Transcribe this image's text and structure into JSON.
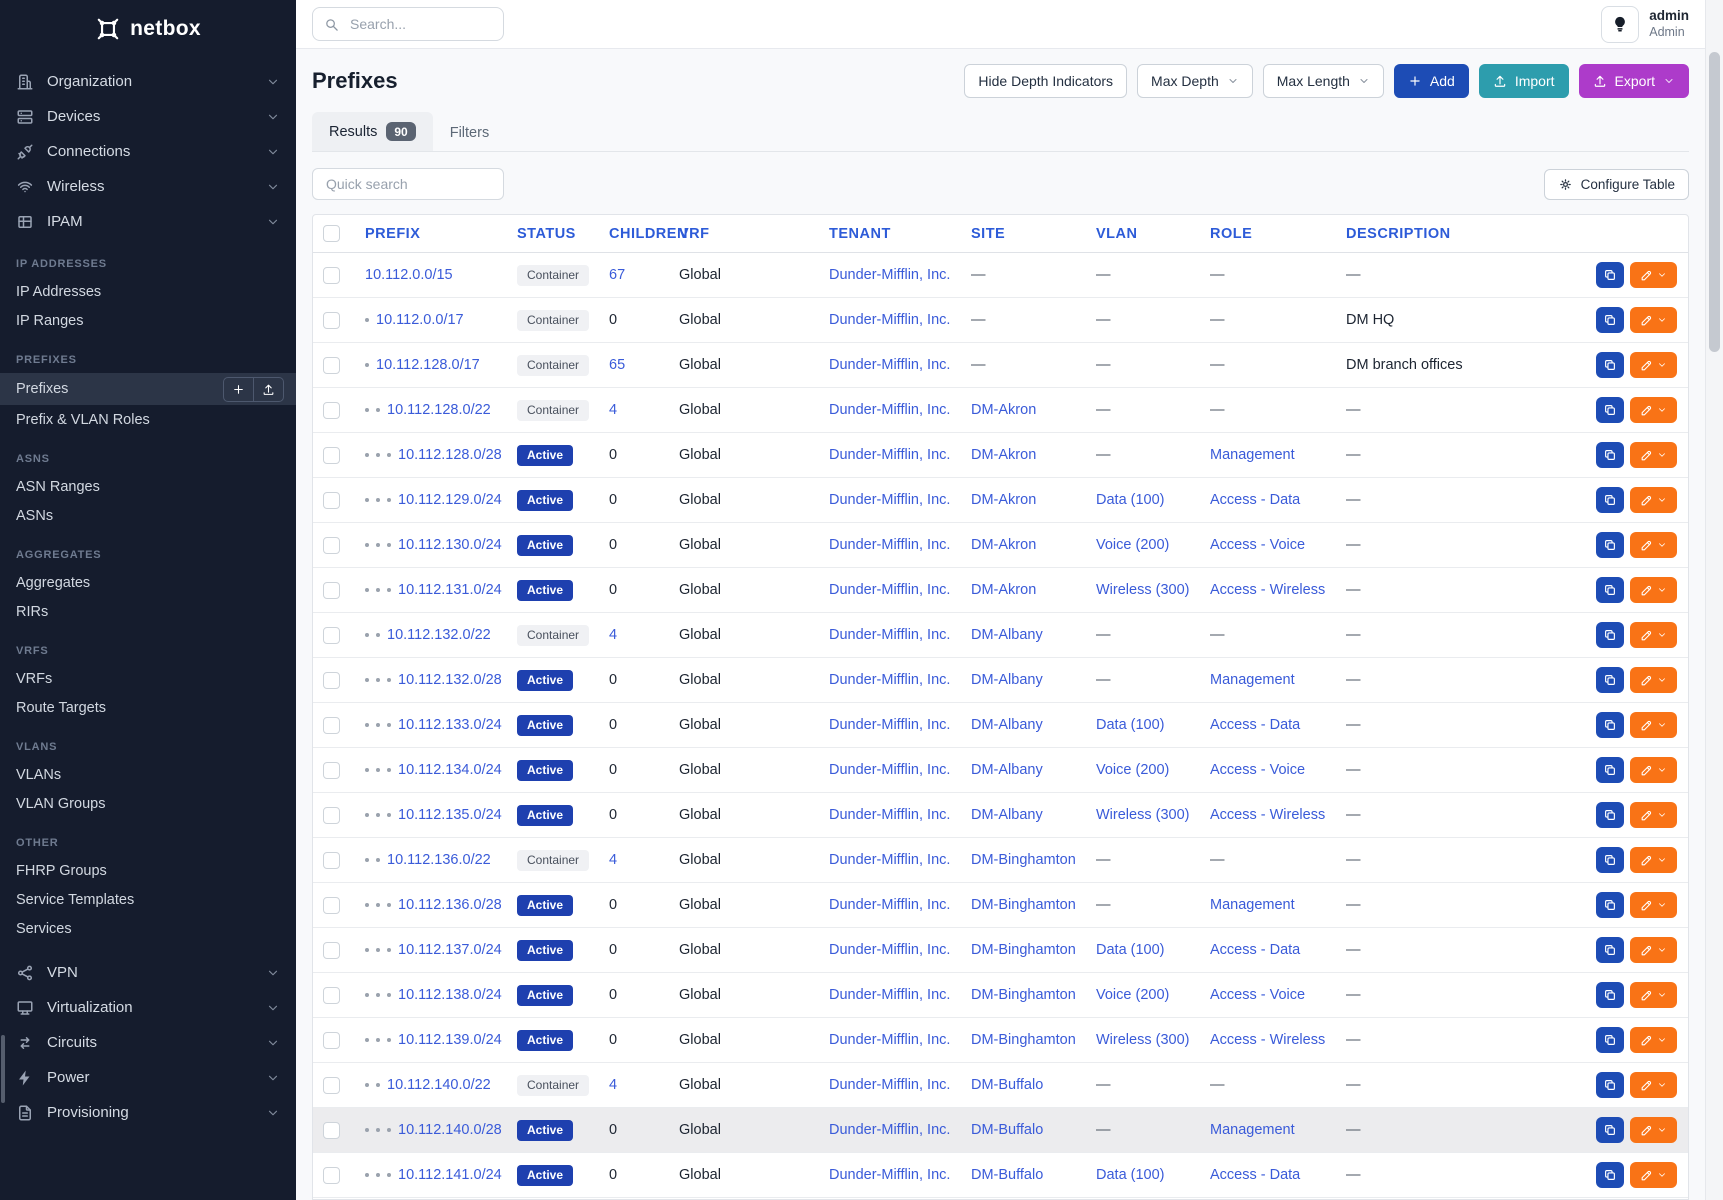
{
  "brand": {
    "name": "netbox"
  },
  "sidebar": {
    "top_items": [
      {
        "label": "Organization",
        "icon": "organization-icon"
      },
      {
        "label": "Devices",
        "icon": "devices-icon"
      },
      {
        "label": "Connections",
        "icon": "connections-icon"
      },
      {
        "label": "Wireless",
        "icon": "wireless-icon"
      },
      {
        "label": "IPAM",
        "icon": "ipam-icon"
      }
    ],
    "sections": [
      {
        "header": "IP ADDRESSES",
        "items": [
          {
            "label": "IP Addresses"
          },
          {
            "label": "IP Ranges"
          }
        ]
      },
      {
        "header": "PREFIXES",
        "items": [
          {
            "label": "Prefixes",
            "active": true,
            "actions": true
          },
          {
            "label": "Prefix & VLAN Roles"
          }
        ]
      },
      {
        "header": "ASNS",
        "items": [
          {
            "label": "ASN Ranges"
          },
          {
            "label": "ASNs"
          }
        ]
      },
      {
        "header": "AGGREGATES",
        "items": [
          {
            "label": "Aggregates"
          },
          {
            "label": "RIRs"
          }
        ]
      },
      {
        "header": "VRFS",
        "items": [
          {
            "label": "VRFs"
          },
          {
            "label": "Route Targets"
          }
        ]
      },
      {
        "header": "VLANS",
        "items": [
          {
            "label": "VLANs"
          },
          {
            "label": "VLAN Groups"
          }
        ]
      },
      {
        "header": "OTHER",
        "items": [
          {
            "label": "FHRP Groups"
          },
          {
            "label": "Service Templates"
          },
          {
            "label": "Services"
          }
        ]
      }
    ],
    "bottom_items": [
      {
        "label": "VPN",
        "icon": "vpn-icon"
      },
      {
        "label": "Virtualization",
        "icon": "virtualization-icon"
      },
      {
        "label": "Circuits",
        "icon": "circuits-icon"
      },
      {
        "label": "Power",
        "icon": "power-icon"
      },
      {
        "label": "Provisioning",
        "icon": "provisioning-icon"
      }
    ]
  },
  "topbar": {
    "search_placeholder": "Search...",
    "user": {
      "name": "admin",
      "role": "Admin"
    }
  },
  "page": {
    "title": "Prefixes",
    "actions": {
      "hide_depth": "Hide Depth Indicators",
      "max_depth": "Max Depth",
      "max_length": "Max Length",
      "add": "Add",
      "import": "Import",
      "export": "Export"
    },
    "tabs": [
      {
        "label": "Results",
        "count": "90",
        "active": true
      },
      {
        "label": "Filters",
        "active": false
      }
    ],
    "quick_search_placeholder": "Quick search",
    "configure_table": "Configure Table"
  },
  "table": {
    "empty_placeholder": "—",
    "columns": [
      "PREFIX",
      "STATUS",
      "CHILDREN",
      "VRF",
      "TENANT",
      "SITE",
      "VLAN",
      "ROLE",
      "DESCRIPTION"
    ],
    "rows": [
      {
        "depth": 0,
        "prefix": "10.112.0.0/15",
        "status": "Container",
        "children": "67",
        "vrf": "Global",
        "tenant": "Dunder-Mifflin, Inc.",
        "site": "",
        "vlan": "",
        "role": "",
        "description": ""
      },
      {
        "depth": 1,
        "prefix": "10.112.0.0/17",
        "status": "Container",
        "children": "0",
        "vrf": "Global",
        "tenant": "Dunder-Mifflin, Inc.",
        "site": "",
        "vlan": "",
        "role": "",
        "description": "DM HQ"
      },
      {
        "depth": 1,
        "prefix": "10.112.128.0/17",
        "status": "Container",
        "children": "65",
        "vrf": "Global",
        "tenant": "Dunder-Mifflin, Inc.",
        "site": "",
        "vlan": "",
        "role": "",
        "description": "DM branch offices"
      },
      {
        "depth": 2,
        "prefix": "10.112.128.0/22",
        "status": "Container",
        "children": "4",
        "vrf": "Global",
        "tenant": "Dunder-Mifflin, Inc.",
        "site": "DM-Akron",
        "vlan": "",
        "role": "",
        "description": ""
      },
      {
        "depth": 3,
        "prefix": "10.112.128.0/28",
        "status": "Active",
        "children": "0",
        "vrf": "Global",
        "tenant": "Dunder-Mifflin, Inc.",
        "site": "DM-Akron",
        "vlan": "",
        "role": "Management",
        "description": ""
      },
      {
        "depth": 3,
        "prefix": "10.112.129.0/24",
        "status": "Active",
        "children": "0",
        "vrf": "Global",
        "tenant": "Dunder-Mifflin, Inc.",
        "site": "DM-Akron",
        "vlan": "Data (100)",
        "role": "Access - Data",
        "description": ""
      },
      {
        "depth": 3,
        "prefix": "10.112.130.0/24",
        "status": "Active",
        "children": "0",
        "vrf": "Global",
        "tenant": "Dunder-Mifflin, Inc.",
        "site": "DM-Akron",
        "vlan": "Voice (200)",
        "role": "Access - Voice",
        "description": ""
      },
      {
        "depth": 3,
        "prefix": "10.112.131.0/24",
        "status": "Active",
        "children": "0",
        "vrf": "Global",
        "tenant": "Dunder-Mifflin, Inc.",
        "site": "DM-Akron",
        "vlan": "Wireless (300)",
        "role": "Access - Wireless",
        "description": ""
      },
      {
        "depth": 2,
        "prefix": "10.112.132.0/22",
        "status": "Container",
        "children": "4",
        "vrf": "Global",
        "tenant": "Dunder-Mifflin, Inc.",
        "site": "DM-Albany",
        "vlan": "",
        "role": "",
        "description": ""
      },
      {
        "depth": 3,
        "prefix": "10.112.132.0/28",
        "status": "Active",
        "children": "0",
        "vrf": "Global",
        "tenant": "Dunder-Mifflin, Inc.",
        "site": "DM-Albany",
        "vlan": "",
        "role": "Management",
        "description": ""
      },
      {
        "depth": 3,
        "prefix": "10.112.133.0/24",
        "status": "Active",
        "children": "0",
        "vrf": "Global",
        "tenant": "Dunder-Mifflin, Inc.",
        "site": "DM-Albany",
        "vlan": "Data (100)",
        "role": "Access - Data",
        "description": ""
      },
      {
        "depth": 3,
        "prefix": "10.112.134.0/24",
        "status": "Active",
        "children": "0",
        "vrf": "Global",
        "tenant": "Dunder-Mifflin, Inc.",
        "site": "DM-Albany",
        "vlan": "Voice (200)",
        "role": "Access - Voice",
        "description": ""
      },
      {
        "depth": 3,
        "prefix": "10.112.135.0/24",
        "status": "Active",
        "children": "0",
        "vrf": "Global",
        "tenant": "Dunder-Mifflin, Inc.",
        "site": "DM-Albany",
        "vlan": "Wireless (300)",
        "role": "Access - Wireless",
        "description": ""
      },
      {
        "depth": 2,
        "prefix": "10.112.136.0/22",
        "status": "Container",
        "children": "4",
        "vrf": "Global",
        "tenant": "Dunder-Mifflin, Inc.",
        "site": "DM-Binghamton",
        "vlan": "",
        "role": "",
        "description": ""
      },
      {
        "depth": 3,
        "prefix": "10.112.136.0/28",
        "status": "Active",
        "children": "0",
        "vrf": "Global",
        "tenant": "Dunder-Mifflin, Inc.",
        "site": "DM-Binghamton",
        "vlan": "",
        "role": "Management",
        "description": ""
      },
      {
        "depth": 3,
        "prefix": "10.112.137.0/24",
        "status": "Active",
        "children": "0",
        "vrf": "Global",
        "tenant": "Dunder-Mifflin, Inc.",
        "site": "DM-Binghamton",
        "vlan": "Data (100)",
        "role": "Access - Data",
        "description": ""
      },
      {
        "depth": 3,
        "prefix": "10.112.138.0/24",
        "status": "Active",
        "children": "0",
        "vrf": "Global",
        "tenant": "Dunder-Mifflin, Inc.",
        "site": "DM-Binghamton",
        "vlan": "Voice (200)",
        "role": "Access - Voice",
        "description": ""
      },
      {
        "depth": 3,
        "prefix": "10.112.139.0/24",
        "status": "Active",
        "children": "0",
        "vrf": "Global",
        "tenant": "Dunder-Mifflin, Inc.",
        "site": "DM-Binghamton",
        "vlan": "Wireless (300)",
        "role": "Access - Wireless",
        "description": ""
      },
      {
        "depth": 2,
        "prefix": "10.112.140.0/22",
        "status": "Container",
        "children": "4",
        "vrf": "Global",
        "tenant": "Dunder-Mifflin, Inc.",
        "site": "DM-Buffalo",
        "vlan": "",
        "role": "",
        "description": ""
      },
      {
        "depth": 3,
        "prefix": "10.112.140.0/28",
        "status": "Active",
        "children": "0",
        "vrf": "Global",
        "tenant": "Dunder-Mifflin, Inc.",
        "site": "DM-Buffalo",
        "vlan": "",
        "role": "Management",
        "description": "",
        "highlight": true
      },
      {
        "depth": 3,
        "prefix": "10.112.141.0/24",
        "status": "Active",
        "children": "0",
        "vrf": "Global",
        "tenant": "Dunder-Mifflin, Inc.",
        "site": "DM-Buffalo",
        "vlan": "Data (100)",
        "role": "Access - Data",
        "description": ""
      }
    ]
  },
  "colors": {
    "sidebar_bg": "#151c2d",
    "link_blue": "#3a5bd9",
    "active_badge": "#1e40af",
    "add_button": "#1d4cb5",
    "import_button": "#2d9dad",
    "export_button": "#ad3bca",
    "edit_button": "#f97316"
  }
}
